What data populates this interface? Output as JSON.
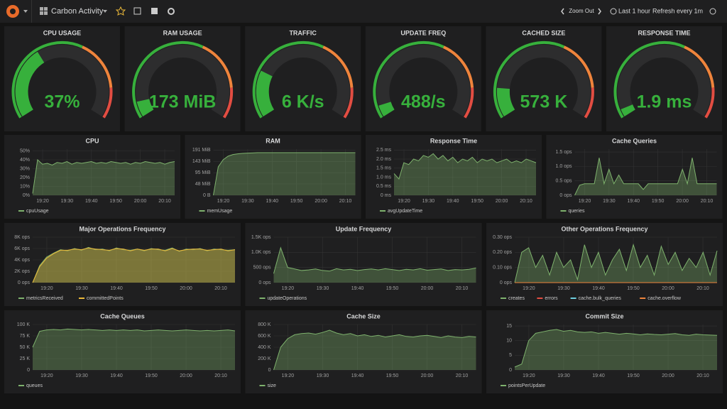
{
  "topbar": {
    "title": "Carbon Activity",
    "zoom": "Zoom Out",
    "range": "Last 1 hour",
    "refresh": "Refresh every 1m"
  },
  "gauges": [
    {
      "title": "CPU USAGE",
      "value": "37%"
    },
    {
      "title": "RAM USAGE",
      "value": "173 MiB"
    },
    {
      "title": "TRAFFIC",
      "value": "6 K/s"
    },
    {
      "title": "UPDATE FREQ",
      "value": "488/s"
    },
    {
      "title": "CACHED SIZE",
      "value": "573 K"
    },
    {
      "title": "RESPONSE TIME",
      "value": "1.9 ms"
    }
  ],
  "chart_data": [
    {
      "type": "line",
      "title": "CPU",
      "ylim": [
        0,
        52
      ],
      "yticks": [
        {
          "value": 0,
          "label": "0%"
        },
        {
          "value": 10,
          "label": "10%"
        },
        {
          "value": 20,
          "label": "20%"
        },
        {
          "value": 30,
          "label": "30%"
        },
        {
          "value": 40,
          "label": "40%"
        },
        {
          "value": 50,
          "label": "50%"
        }
      ],
      "xticks": [
        "19:20",
        "19:30",
        "19:40",
        "19:50",
        "20:00",
        "20:10"
      ],
      "series": [
        {
          "name": "cpuUsage",
          "color": "#7eb26d",
          "values": [
            2,
            40,
            35,
            36,
            34,
            37,
            36,
            38,
            35,
            37,
            36,
            37,
            38,
            36,
            37,
            36,
            38,
            37,
            36,
            37,
            35,
            37,
            36,
            38,
            37,
            36,
            37,
            35,
            37,
            38
          ]
        }
      ]
    },
    {
      "type": "line",
      "title": "RAM",
      "ylim": [
        0,
        195
      ],
      "yticks": [
        {
          "value": 0,
          "label": "0 B"
        },
        {
          "value": 48,
          "label": "48 MiB"
        },
        {
          "value": 95,
          "label": "95 MiB"
        },
        {
          "value": 143,
          "label": "143 MiB"
        },
        {
          "value": 191,
          "label": "191 MiB"
        }
      ],
      "xticks": [
        "19:20",
        "19:30",
        "19:40",
        "19:50",
        "20:00",
        "20:10"
      ],
      "series": [
        {
          "name": "memUsage",
          "color": "#7eb26d",
          "values": [
            0,
            120,
            150,
            165,
            172,
            175,
            177,
            178,
            179,
            180,
            180,
            180,
            180,
            180,
            180,
            180,
            180,
            180,
            180,
            180,
            180,
            180,
            180,
            180,
            180,
            180,
            180,
            180,
            180,
            180
          ]
        }
      ]
    },
    {
      "type": "line",
      "title": "Response Time",
      "ylim": [
        0,
        2.55
      ],
      "yticks": [
        {
          "value": 0,
          "label": "0 ms"
        },
        {
          "value": 0.5,
          "label": "0.5 ms"
        },
        {
          "value": 1,
          "label": "1.0 ms"
        },
        {
          "value": 1.5,
          "label": "1.5 ms"
        },
        {
          "value": 2,
          "label": "2.0 ms"
        },
        {
          "value": 2.5,
          "label": "2.5 ms"
        }
      ],
      "xticks": [
        "19:20",
        "19:30",
        "19:40",
        "19:50",
        "20:00",
        "20:10"
      ],
      "series": [
        {
          "name": "avgUpdateTime",
          "color": "#7eb26d",
          "values": [
            1.2,
            0.9,
            1.8,
            1.7,
            2.0,
            1.9,
            2.2,
            2.1,
            2.3,
            2.0,
            2.2,
            1.9,
            2.1,
            1.8,
            2.0,
            1.9,
            2.1,
            1.8,
            2.0,
            1.9,
            2.0,
            1.8,
            1.9,
            2.0,
            1.8,
            1.9,
            1.8,
            2.0,
            1.9,
            1.8
          ]
        }
      ]
    },
    {
      "type": "line",
      "title": "Cache Queries",
      "ylim": [
        0,
        1.6
      ],
      "yticks": [
        {
          "value": 0,
          "label": "0 ops"
        },
        {
          "value": 0.5,
          "label": "0.5 ops"
        },
        {
          "value": 1,
          "label": "1.0 ops"
        },
        {
          "value": 1.5,
          "label": "1.5 ops"
        }
      ],
      "xticks": [
        "19:20",
        "19:30",
        "19:40",
        "19:50",
        "20:00",
        "20:10"
      ],
      "series": [
        {
          "name": "queries",
          "color": "#7eb26d",
          "values": [
            0,
            0.35,
            0.4,
            0.4,
            0.4,
            1.3,
            0.4,
            0.9,
            0.4,
            0.7,
            0.4,
            0.4,
            0.4,
            0.4,
            0.2,
            0.4,
            0.4,
            0.4,
            0.4,
            0.4,
            0.4,
            0.4,
            0.9,
            0.4,
            1.3,
            0.4,
            0.4,
            0.4,
            0.4,
            0.4
          ]
        }
      ]
    },
    {
      "type": "line",
      "title": "Major Operations Frequency",
      "ylim": [
        0,
        8000
      ],
      "yticks": [
        {
          "value": 0,
          "label": "0 ops"
        },
        {
          "value": 2000,
          "label": "2K ops"
        },
        {
          "value": 4000,
          "label": "4K ops"
        },
        {
          "value": 6000,
          "label": "6K ops"
        },
        {
          "value": 8000,
          "label": "8K ops"
        }
      ],
      "xticks": [
        "19:20",
        "19:30",
        "19:40",
        "19:50",
        "20:00",
        "20:10"
      ],
      "series": [
        {
          "name": "metricsReceived",
          "color": "#7eb26d",
          "values": [
            0,
            3000,
            4500,
            5200,
            5800,
            5600,
            6000,
            5700,
            6200,
            5800,
            5900,
            5600,
            6100,
            5800,
            5700,
            5900,
            5600,
            6000,
            5800,
            5700,
            6100,
            5500,
            5900,
            5800,
            6000,
            5600,
            5900,
            5800,
            5700,
            5800
          ]
        },
        {
          "name": "committedPoints",
          "color": "#eab839",
          "values": [
            0,
            2800,
            4300,
            5100,
            5700,
            5700,
            5900,
            5800,
            6100,
            5900,
            5800,
            5700,
            6000,
            5900,
            5600,
            5900,
            5700,
            5900,
            5900,
            5600,
            6000,
            5600,
            5800,
            5900,
            5900,
            5700,
            5800,
            5900,
            5600,
            5800
          ]
        }
      ]
    },
    {
      "type": "line",
      "title": "Update Frequency",
      "ylim": [
        0,
        1500
      ],
      "yticks": [
        {
          "value": 0,
          "label": "0 ops"
        },
        {
          "value": 500,
          "label": "500 ops"
        },
        {
          "value": 1000,
          "label": "1.0K ops"
        },
        {
          "value": 1500,
          "label": "1.5K ops"
        }
      ],
      "xticks": [
        "19:20",
        "19:30",
        "19:40",
        "19:50",
        "20:00",
        "20:10"
      ],
      "series": [
        {
          "name": "updateOperations",
          "color": "#7eb26d",
          "values": [
            300,
            1150,
            500,
            450,
            400,
            420,
            450,
            400,
            380,
            460,
            420,
            440,
            400,
            430,
            450,
            420,
            460,
            430,
            400,
            440,
            420,
            460,
            410,
            430,
            450,
            400,
            430,
            420,
            440,
            480
          ]
        }
      ]
    },
    {
      "type": "line",
      "title": "Other Operations Frequency",
      "ylim": [
        0,
        0.3
      ],
      "yticks": [
        {
          "value": 0,
          "label": "0 ops"
        },
        {
          "value": 0.1,
          "label": "0.10 ops"
        },
        {
          "value": 0.2,
          "label": "0.20 ops"
        },
        {
          "value": 0.3,
          "label": "0.30 ops"
        }
      ],
      "xticks": [
        "19:20",
        "19:30",
        "19:40",
        "19:50",
        "20:00",
        "20:10"
      ],
      "series": [
        {
          "name": "creates",
          "color": "#7eb26d",
          "values": [
            0,
            0.2,
            0.23,
            0.1,
            0.18,
            0.05,
            0.2,
            0.1,
            0.15,
            0.02,
            0.25,
            0.1,
            0.2,
            0.05,
            0.15,
            0.22,
            0.08,
            0.25,
            0.1,
            0.18,
            0.05,
            0.24,
            0.12,
            0.2,
            0.08,
            0.16,
            0.1,
            0.2,
            0.05,
            0.21
          ]
        },
        {
          "name": "errors",
          "color": "#e24d42",
          "values": [
            0,
            0,
            0,
            0,
            0,
            0,
            0,
            0,
            0,
            0,
            0,
            0,
            0,
            0,
            0,
            0,
            0,
            0,
            0,
            0,
            0,
            0,
            0,
            0,
            0,
            0,
            0,
            0,
            0,
            0
          ]
        },
        {
          "name": "cache.bulk_queries",
          "color": "#6ed0e0",
          "values": [
            0,
            0,
            0,
            0,
            0,
            0,
            0,
            0,
            0,
            0,
            0,
            0,
            0,
            0,
            0,
            0,
            0,
            0,
            0,
            0,
            0,
            0,
            0,
            0,
            0,
            0,
            0,
            0,
            0,
            0
          ]
        },
        {
          "name": "cache.overflow",
          "color": "#ef843c",
          "values": [
            0,
            0,
            0,
            0,
            0,
            0,
            0,
            0,
            0,
            0,
            0,
            0,
            0,
            0,
            0,
            0,
            0,
            0,
            0,
            0,
            0,
            0,
            0,
            0,
            0,
            0,
            0,
            0,
            0,
            0
          ]
        }
      ]
    },
    {
      "type": "line",
      "title": "Cache Queues",
      "ylim": [
        0,
        100000
      ],
      "yticks": [
        0,
        {
          "value": 25000,
          "label": "25 K"
        },
        {
          "value": 50000,
          "label": "50 K"
        },
        {
          "value": 75000,
          "label": "75 K"
        },
        {
          "value": 100000,
          "label": "100 K"
        }
      ],
      "xticks": [
        "19:20",
        "19:30",
        "19:40",
        "19:50",
        "20:00",
        "20:10"
      ],
      "series": [
        {
          "name": "queues",
          "color": "#7eb26d",
          "values": [
            50000,
            85000,
            88000,
            89000,
            88000,
            90000,
            89000,
            88000,
            89000,
            88000,
            87000,
            88000,
            87000,
            88000,
            87000,
            88000,
            86000,
            87000,
            88000,
            87000,
            86000,
            87000,
            88000,
            87000,
            86000,
            87000,
            86000,
            87000,
            88000,
            86000
          ]
        }
      ]
    },
    {
      "type": "line",
      "title": "Cache Size",
      "ylim": [
        0,
        800000
      ],
      "yticks": [
        0,
        {
          "value": 200000,
          "label": "200 K"
        },
        {
          "value": 400000,
          "label": "400 K"
        },
        {
          "value": 600000,
          "label": "600 K"
        },
        {
          "value": 800000,
          "label": "800 K"
        }
      ],
      "xticks": [
        "19:20",
        "19:30",
        "19:40",
        "19:50",
        "20:00",
        "20:10"
      ],
      "series": [
        {
          "name": "size",
          "color": "#7eb26d",
          "values": [
            0,
            400000,
            550000,
            620000,
            640000,
            650000,
            630000,
            660000,
            700000,
            650000,
            620000,
            640000,
            600000,
            620000,
            590000,
            610000,
            580000,
            600000,
            620000,
            590000,
            580000,
            600000,
            610000,
            590000,
            570000,
            600000,
            580000,
            570000,
            590000,
            580000
          ]
        }
      ]
    },
    {
      "type": "line",
      "title": "Commit Size",
      "ylim": [
        0,
        15.5
      ],
      "yticks": [
        0,
        5,
        10,
        15
      ],
      "xticks": [
        "19:20",
        "19:30",
        "19:40",
        "19:50",
        "20:00",
        "20:10"
      ],
      "series": [
        {
          "name": "pointsPerUpdate",
          "color": "#7eb26d",
          "values": [
            1,
            2,
            10,
            12.5,
            13,
            13.5,
            13.8,
            13.2,
            13.5,
            13,
            12.8,
            13,
            12.5,
            12.8,
            12.5,
            12.2,
            12.5,
            12.3,
            12,
            12.3,
            12.1,
            12,
            12.2,
            12.4,
            12,
            11.8,
            12.2,
            12,
            11.9,
            11.8
          ]
        }
      ]
    }
  ]
}
